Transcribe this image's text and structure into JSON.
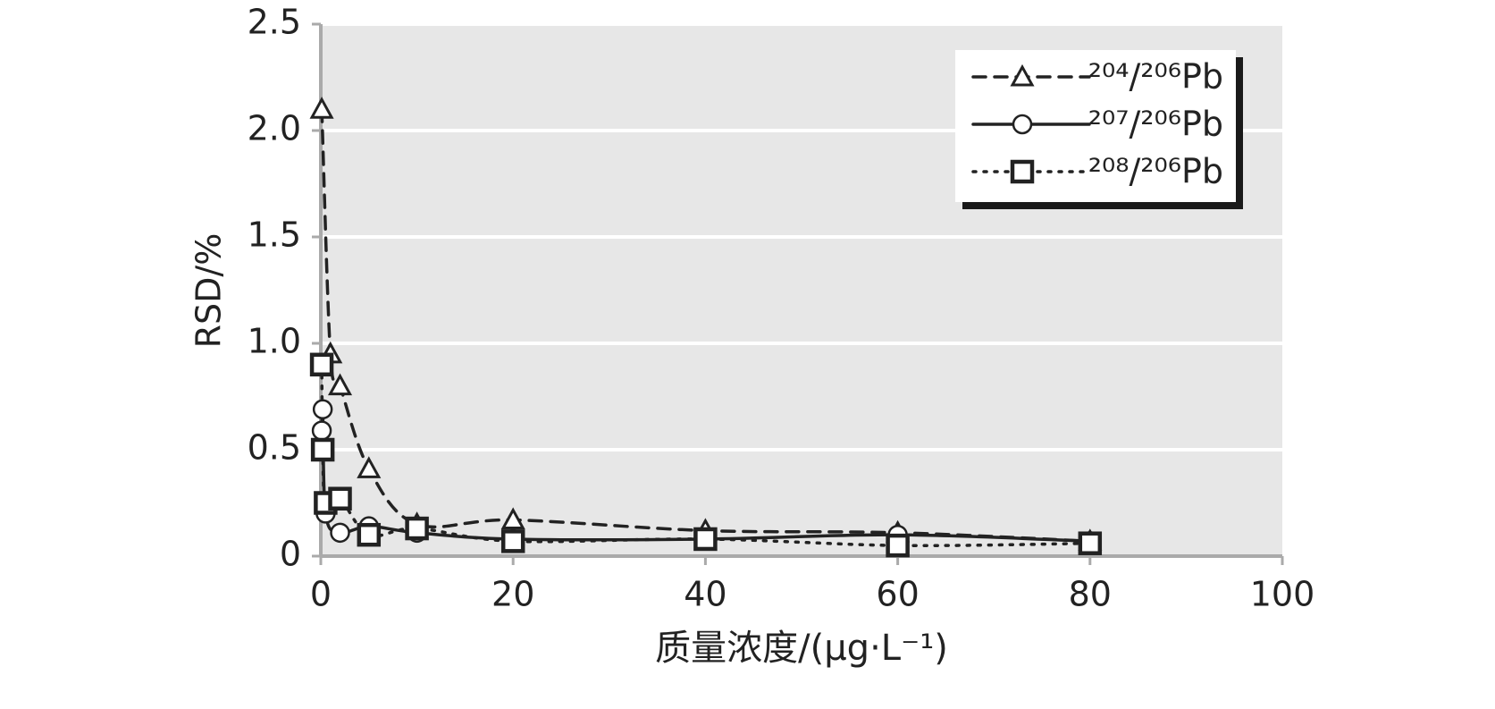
{
  "chart_data": {
    "type": "line",
    "x_label": "质量浓度/(μg·L⁻¹)",
    "y_label": "RSD/%",
    "xlim": [
      0,
      100
    ],
    "xticks": [
      0,
      20,
      40,
      60,
      80,
      100
    ],
    "ylim": [
      0,
      2.5
    ],
    "yticks": [
      0,
      0.5,
      {
        "value": 1,
        "label": "1.0"
      },
      1.5,
      {
        "value": 2,
        "label": "2.0"
      },
      2.5
    ],
    "grid": true,
    "legend": "top-right",
    "series": [
      {
        "name": "²⁰⁴/²⁰⁶Pb",
        "color": "#222222",
        "line_style": "dashed",
        "marker": "triangle",
        "x": [
          0.1,
          1,
          2,
          5,
          10,
          20,
          40,
          60,
          80
        ],
        "values": [
          2.1,
          0.95,
          0.8,
          0.41,
          0.15,
          0.17,
          0.12,
          0.11,
          0.07
        ]
      },
      {
        "name": "²⁰⁷/²⁰⁶Pb",
        "color": "#222222",
        "line_style": "solid",
        "marker": "circle",
        "x": [
          0.1,
          0.2,
          0.5,
          2,
          5,
          10,
          20,
          40,
          60,
          80
        ],
        "values": [
          0.59,
          0.69,
          0.2,
          0.11,
          0.14,
          0.11,
          0.08,
          0.08,
          0.1,
          0.07
        ]
      },
      {
        "name": "²⁰⁸/²⁰⁶Pb",
        "color": "#222222",
        "line_style": "dotted",
        "marker": "square",
        "x": [
          0.1,
          0.2,
          0.5,
          2,
          5,
          10,
          20,
          40,
          60,
          80
        ],
        "values": [
          0.9,
          0.5,
          0.25,
          0.27,
          0.1,
          0.13,
          0.07,
          0.08,
          0.05,
          0.06
        ]
      }
    ]
  }
}
